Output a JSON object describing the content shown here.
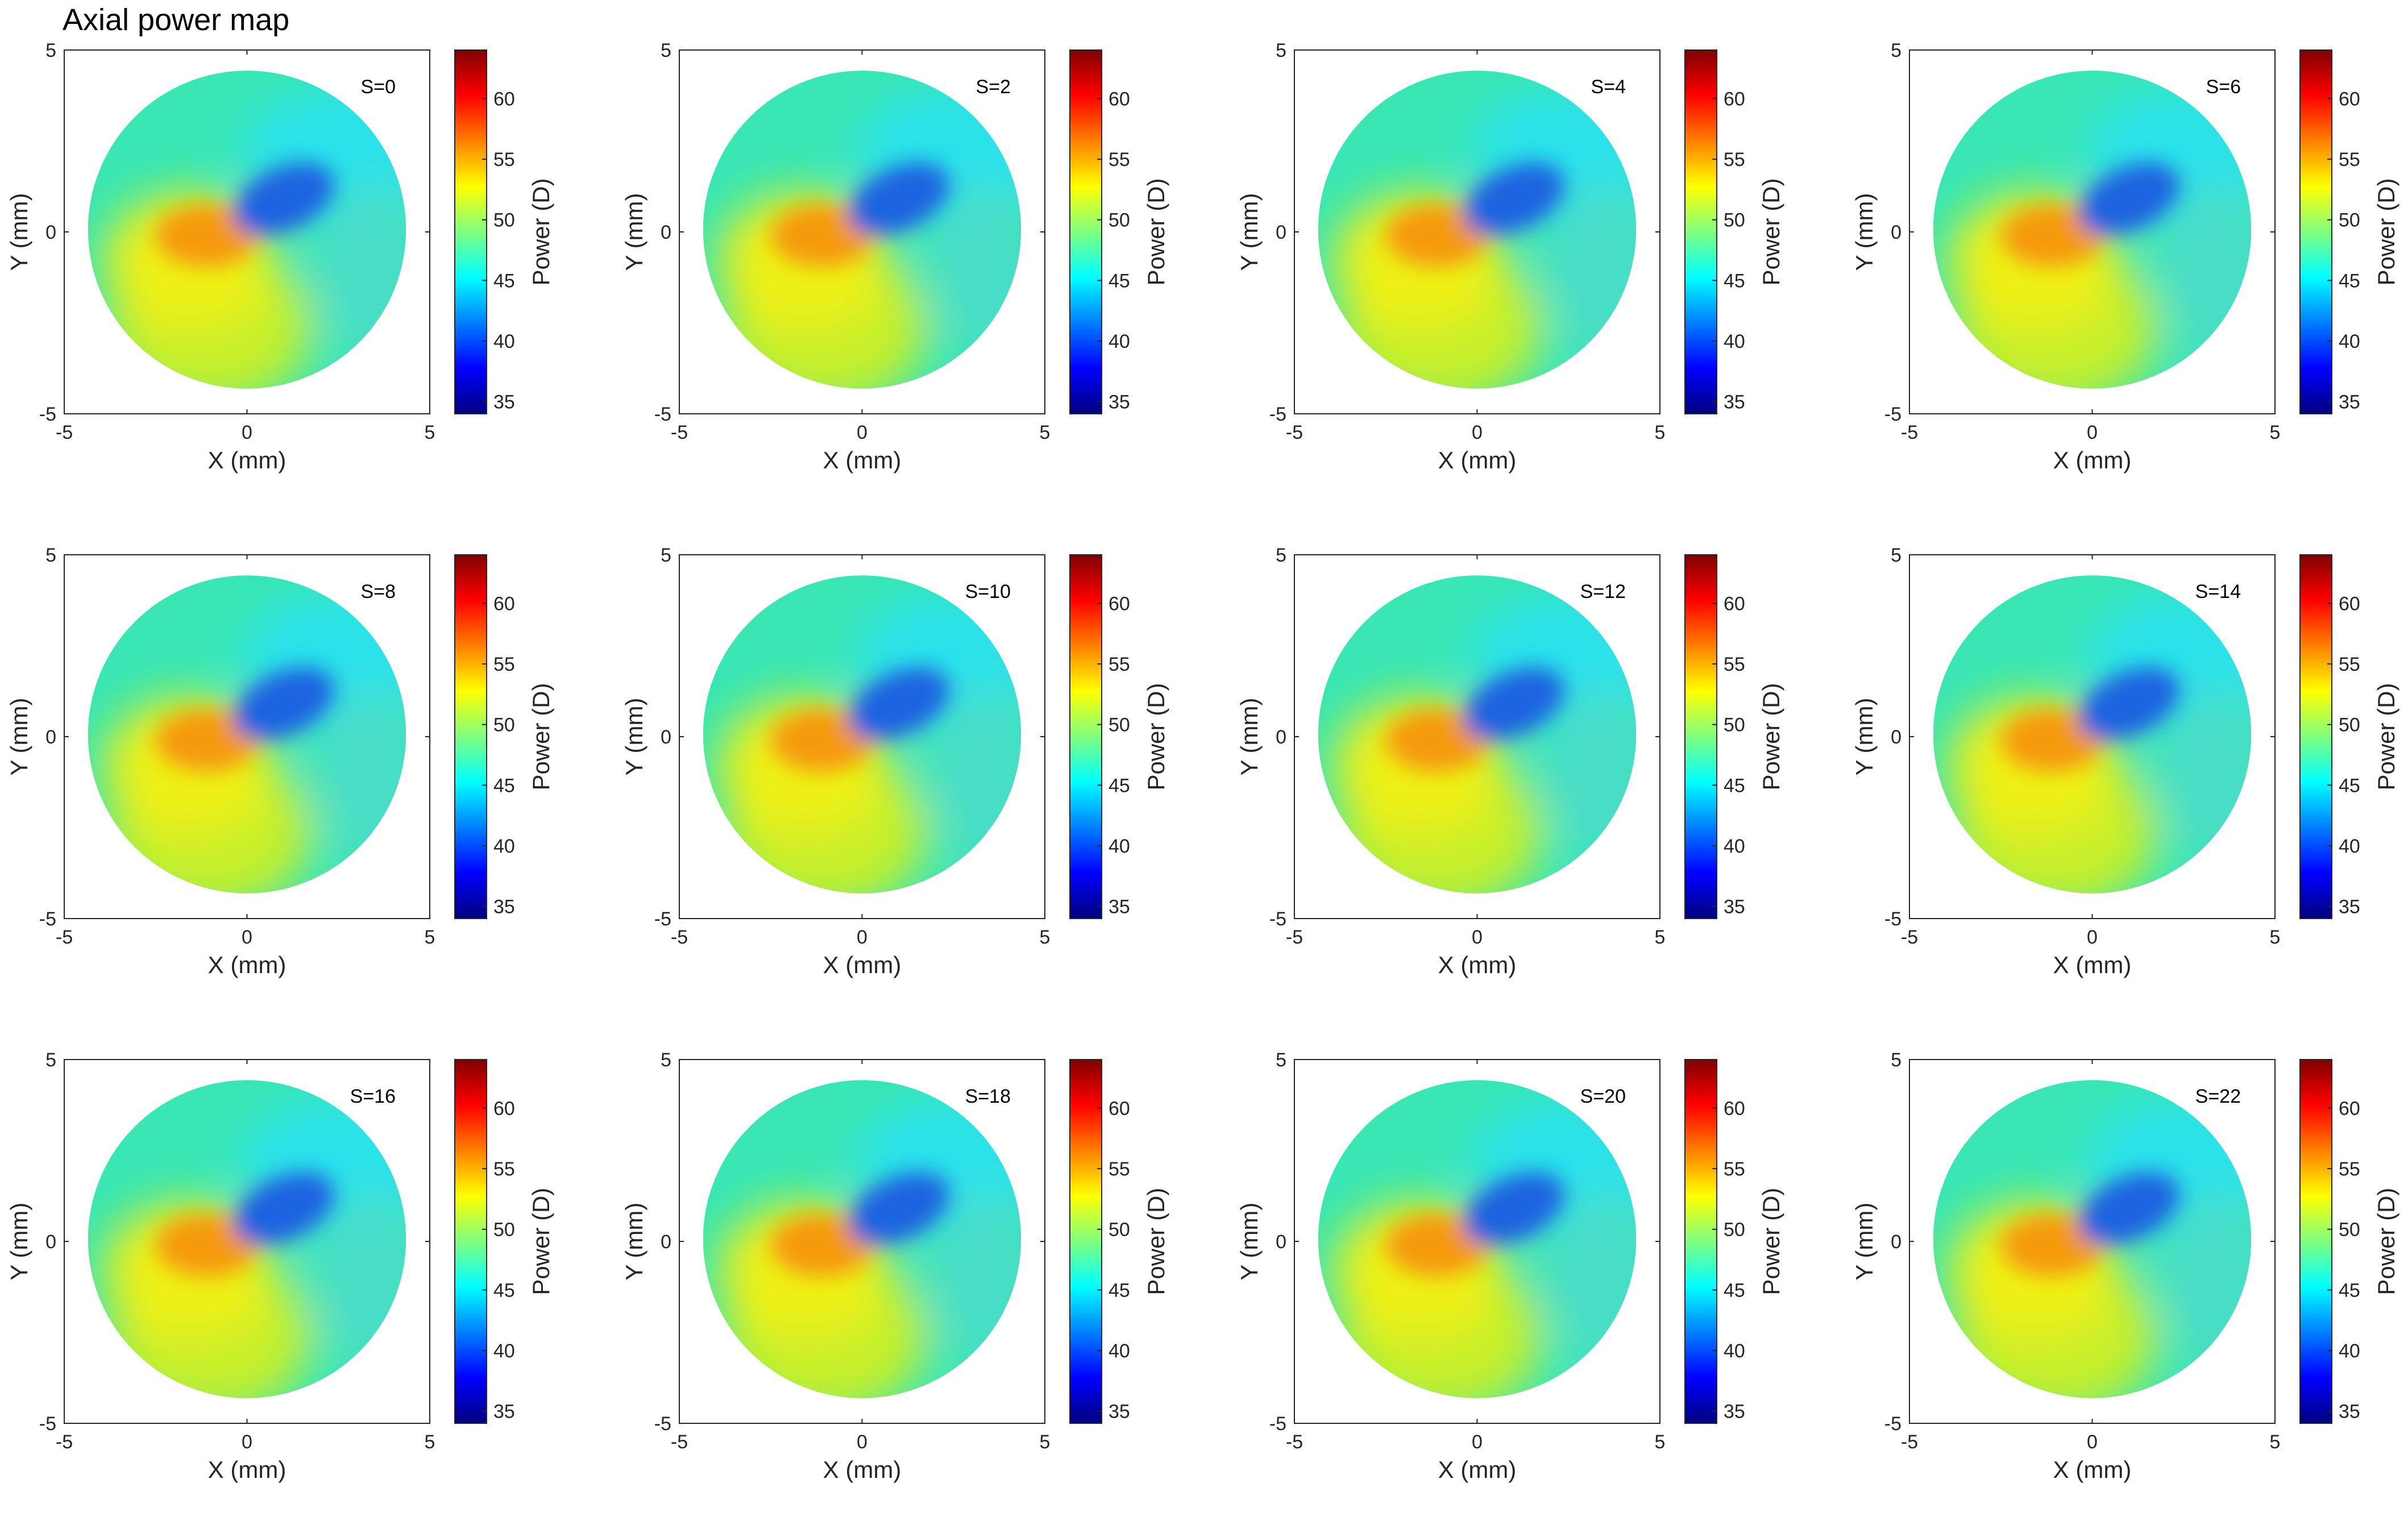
{
  "title": "Axial power map",
  "chart_data": {
    "type": "heatmap",
    "title": "Axial power map",
    "xlabel": "X (mm)",
    "ylabel": "Y (mm)",
    "xlim": [
      -5,
      5
    ],
    "ylim": [
      -5,
      5
    ],
    "xticks": [
      "-5",
      "0",
      "5"
    ],
    "yticks": [
      "5",
      "0",
      "-5"
    ],
    "colorbar": {
      "label": "Power (D)",
      "range": [
        34,
        64
      ],
      "ticks": [
        "60",
        "55",
        "50",
        "45",
        "40",
        "35"
      ],
      "colormap": "jet"
    },
    "panels": [
      {
        "label": "S=0"
      },
      {
        "label": "S=2"
      },
      {
        "label": "S=4"
      },
      {
        "label": "S=6"
      },
      {
        "label": "S=8"
      },
      {
        "label": "S=10"
      },
      {
        "label": "S=12"
      },
      {
        "label": "S=14"
      },
      {
        "label": "S=16"
      },
      {
        "label": "S=18"
      },
      {
        "label": "S=20"
      },
      {
        "label": "S=22"
      }
    ]
  },
  "colors": {
    "jet": [
      "#00007f",
      "#0000ff",
      "#007fff",
      "#00ffff",
      "#7fff7f",
      "#ffff00",
      "#ff7f00",
      "#ff0000",
      "#7f0000"
    ],
    "blue_lobe": "#1b63e0",
    "orange_lobe": "#f59a10",
    "base_field": "#39e6b4",
    "lower_field": "#c6ef2a",
    "axis": "#262626"
  }
}
